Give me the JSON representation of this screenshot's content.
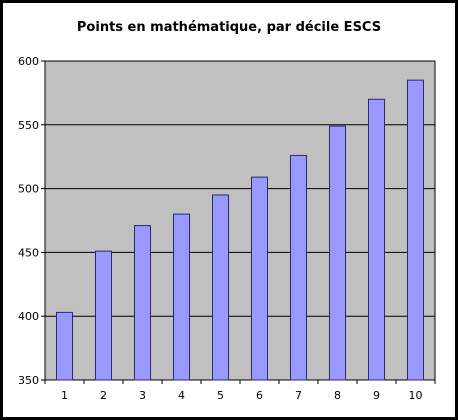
{
  "chart_data": {
    "type": "bar",
    "title": "Points en mathématique, par décile ESCS",
    "xlabel": "",
    "ylabel": "",
    "categories": [
      "1",
      "2",
      "3",
      "4",
      "5",
      "6",
      "7",
      "8",
      "9",
      "10"
    ],
    "values": [
      403,
      451,
      471,
      480,
      495,
      509,
      526,
      549,
      570,
      585
    ],
    "ylim": [
      350,
      600
    ],
    "yticks": [
      350,
      400,
      450,
      500,
      550,
      600
    ],
    "grid": true,
    "legend": "none",
    "colors": {
      "bar_fill": "#9999ff",
      "bar_stroke": "#2a2a6e",
      "plot_background": "#c0c0c0",
      "gridline": "#000000",
      "frame": "#000000"
    }
  }
}
